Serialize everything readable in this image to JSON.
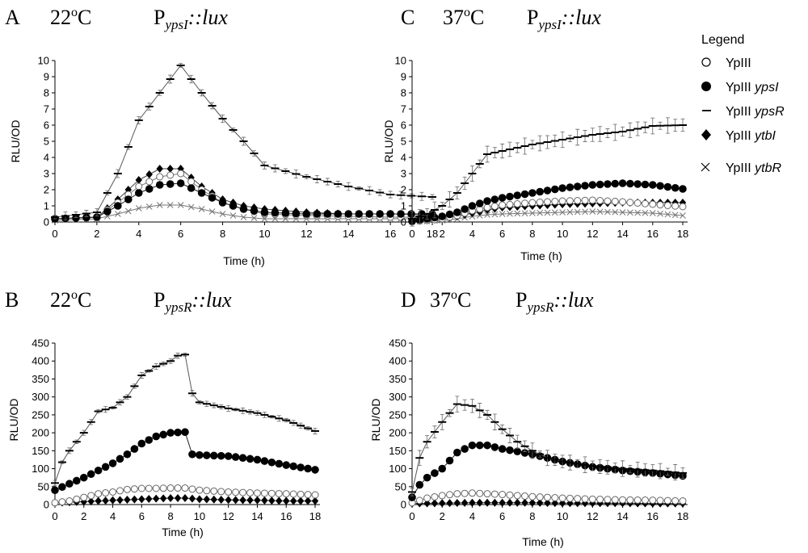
{
  "legend": {
    "title": "Legend",
    "entries": [
      {
        "marker": "open-circle",
        "strain": "YpIII",
        "gene": ""
      },
      {
        "marker": "filled-circle",
        "strain": "YpIII",
        "gene": "ypsI"
      },
      {
        "marker": "dash",
        "strain": "YpIII",
        "gene": "ypsR"
      },
      {
        "marker": "filled-diamond",
        "strain": "YpIII",
        "gene": "ytbI"
      },
      {
        "marker": "x-cross",
        "strain": "YpIII",
        "gene": "ytbR"
      }
    ]
  },
  "chart_data": [
    {
      "type": "line",
      "panel": "A",
      "title_temp": "22",
      "title_sup": "o",
      "title_unit": "C",
      "title_P": "P",
      "title_sub": "ypsI",
      "title_rest": "::lux",
      "xlabel": "Time (h)",
      "ylabel": "RLU/OD",
      "xlim": [
        0,
        18
      ],
      "ylim": [
        0,
        10
      ],
      "xticks": [
        0,
        2,
        4,
        6,
        8,
        10,
        12,
        14,
        16,
        18
      ],
      "yticks": [
        0,
        1,
        2,
        3,
        4,
        5,
        6,
        7,
        8,
        9,
        10
      ],
      "keypoints": {
        "ypsR": [
          [
            0,
            0.3
          ],
          [
            2,
            0.6
          ],
          [
            3,
            3
          ],
          [
            4,
            6.3
          ],
          [
            5,
            8
          ],
          [
            6,
            9.7
          ],
          [
            7,
            8
          ],
          [
            8,
            6.4
          ],
          [
            9,
            5
          ],
          [
            10,
            3.5
          ],
          [
            12,
            2.8
          ],
          [
            14,
            2.2
          ],
          [
            16,
            1.7
          ],
          [
            18,
            1.55
          ]
        ],
        "ytbI": [
          [
            0,
            0.2
          ],
          [
            2,
            0.3
          ],
          [
            3,
            1.4
          ],
          [
            4,
            2.6
          ],
          [
            5,
            3.3
          ],
          [
            6,
            3.3
          ],
          [
            7,
            2.2
          ],
          [
            8,
            1.4
          ],
          [
            9,
            1
          ],
          [
            10,
            0.8
          ],
          [
            12,
            0.6
          ],
          [
            14,
            0.5
          ],
          [
            16,
            0.5
          ],
          [
            18,
            0.45
          ]
        ],
        "WT": [
          [
            0,
            0.2
          ],
          [
            2,
            0.3
          ],
          [
            3,
            1.2
          ],
          [
            4,
            2.2
          ],
          [
            5,
            2.8
          ],
          [
            6,
            3
          ],
          [
            7,
            2
          ],
          [
            8,
            1.2
          ],
          [
            9,
            0.8
          ],
          [
            10,
            0.5
          ],
          [
            12,
            0.4
          ],
          [
            14,
            0.35
          ],
          [
            16,
            0.3
          ],
          [
            18,
            0.3
          ]
        ],
        "ypsI": [
          [
            0,
            0.2
          ],
          [
            2,
            0.3
          ],
          [
            3,
            1
          ],
          [
            4,
            1.8
          ],
          [
            5,
            2.3
          ],
          [
            6,
            2.4
          ],
          [
            7,
            1.8
          ],
          [
            8,
            1.2
          ],
          [
            9,
            0.8
          ],
          [
            10,
            0.6
          ],
          [
            12,
            0.5
          ],
          [
            14,
            0.5
          ],
          [
            16,
            0.5
          ],
          [
            18,
            0.5
          ]
        ],
        "ytbR": [
          [
            0,
            0.1
          ],
          [
            2,
            0.2
          ],
          [
            3,
            0.5
          ],
          [
            4,
            0.85
          ],
          [
            5,
            1.05
          ],
          [
            6,
            1.05
          ],
          [
            7,
            0.8
          ],
          [
            8,
            0.5
          ],
          [
            9,
            0.3
          ],
          [
            10,
            0.2
          ],
          [
            12,
            0.2
          ],
          [
            14,
            0.2
          ],
          [
            16,
            0.2
          ],
          [
            18,
            0.2
          ]
        ]
      },
      "errbars": {
        "ypsR": 0.25,
        "WT": 0.15
      }
    },
    {
      "type": "line",
      "panel": "C",
      "title_temp": "37",
      "title_sup": "o",
      "title_unit": "C",
      "title_P": "P",
      "title_sub": "ypsI",
      "title_rest": "::lux",
      "xlabel": "Time (h)",
      "ylabel": "RLU/OD",
      "xlim": [
        0,
        18
      ],
      "ylim": [
        0,
        10
      ],
      "xticks": [
        0,
        2,
        4,
        6,
        8,
        10,
        12,
        14,
        16,
        18
      ],
      "yticks": [
        0,
        1,
        2,
        3,
        4,
        5,
        6,
        7,
        8,
        9,
        10
      ],
      "keypoints": {
        "ypsR": [
          [
            0,
            0.2
          ],
          [
            1,
            0.5
          ],
          [
            2,
            1
          ],
          [
            3,
            1.8
          ],
          [
            4,
            3
          ],
          [
            5,
            4.2
          ],
          [
            6,
            4.4
          ],
          [
            8,
            4.8
          ],
          [
            10,
            5.1
          ],
          [
            12,
            5.4
          ],
          [
            14,
            5.6
          ],
          [
            16,
            5.95
          ],
          [
            18,
            6
          ]
        ],
        "ypsI": [
          [
            0,
            0.05
          ],
          [
            1,
            0.2
          ],
          [
            2,
            0.35
          ],
          [
            3,
            0.6
          ],
          [
            4,
            1
          ],
          [
            5,
            1.3
          ],
          [
            6,
            1.5
          ],
          [
            8,
            1.8
          ],
          [
            10,
            2.1
          ],
          [
            12,
            2.3
          ],
          [
            14,
            2.4
          ],
          [
            16,
            2.3
          ],
          [
            18,
            2.05
          ]
        ],
        "WT": [
          [
            0,
            0.05
          ],
          [
            1,
            0.1
          ],
          [
            2,
            0.2
          ],
          [
            3,
            0.4
          ],
          [
            4,
            0.7
          ],
          [
            5,
            0.9
          ],
          [
            6,
            1.05
          ],
          [
            8,
            1.2
          ],
          [
            10,
            1.3
          ],
          [
            12,
            1.35
          ],
          [
            14,
            1.25
          ],
          [
            16,
            1.1
          ],
          [
            18,
            0.95
          ]
        ],
        "ytbI": [
          [
            0,
            0.05
          ],
          [
            1,
            0.1
          ],
          [
            2,
            0.2
          ],
          [
            3,
            0.35
          ],
          [
            4,
            0.55
          ],
          [
            5,
            0.75
          ],
          [
            6,
            0.9
          ],
          [
            8,
            1
          ],
          [
            10,
            1.1
          ],
          [
            12,
            1.15
          ],
          [
            14,
            1.2
          ],
          [
            16,
            1.2
          ],
          [
            18,
            1.2
          ]
        ],
        "ytbR": [
          [
            0,
            0.02
          ],
          [
            1,
            0.05
          ],
          [
            2,
            0.1
          ],
          [
            3,
            0.2
          ],
          [
            4,
            0.35
          ],
          [
            5,
            0.45
          ],
          [
            6,
            0.5
          ],
          [
            8,
            0.55
          ],
          [
            10,
            0.6
          ],
          [
            12,
            0.65
          ],
          [
            14,
            0.6
          ],
          [
            16,
            0.55
          ],
          [
            18,
            0.4
          ]
        ]
      },
      "errbars": {
        "ypsR": 0.5,
        "WT": 0.15
      }
    },
    {
      "type": "line",
      "panel": "B",
      "title_temp": "22",
      "title_sup": "o",
      "title_unit": "C",
      "title_P": "P",
      "title_sub": "ypsR",
      "title_rest": "::lux",
      "xlabel": "Time (h)",
      "ylabel": "RLU/OD",
      "xlim": [
        0,
        18
      ],
      "ylim": [
        0,
        450
      ],
      "xticks": [
        0,
        2,
        4,
        6,
        8,
        10,
        12,
        14,
        16,
        18
      ],
      "yticks": [
        0,
        50,
        100,
        150,
        200,
        250,
        300,
        350,
        400,
        450
      ],
      "keypoints": {
        "ypsR": [
          [
            0,
            60
          ],
          [
            0.5,
            118
          ],
          [
            1,
            150
          ],
          [
            2,
            200
          ],
          [
            3,
            260
          ],
          [
            4,
            270
          ],
          [
            5,
            300
          ],
          [
            6,
            360
          ],
          [
            7,
            385
          ],
          [
            8,
            400
          ],
          [
            8.5,
            415
          ],
          [
            9,
            418
          ],
          [
            9.5,
            310
          ],
          [
            10,
            285
          ],
          [
            12,
            268
          ],
          [
            14,
            255
          ],
          [
            16,
            235
          ],
          [
            18,
            205
          ]
        ],
        "ypsI": [
          [
            0,
            40
          ],
          [
            1,
            58
          ],
          [
            2,
            75
          ],
          [
            3,
            95
          ],
          [
            4,
            115
          ],
          [
            5,
            140
          ],
          [
            6,
            170
          ],
          [
            7,
            190
          ],
          [
            8,
            200
          ],
          [
            9,
            202
          ],
          [
            9.5,
            140
          ],
          [
            10,
            138
          ],
          [
            12,
            135
          ],
          [
            14,
            125
          ],
          [
            16,
            110
          ],
          [
            18,
            97
          ]
        ],
        "WT": [
          [
            0,
            5
          ],
          [
            1,
            10
          ],
          [
            2,
            20
          ],
          [
            3,
            30
          ],
          [
            4,
            35
          ],
          [
            5,
            42
          ],
          [
            6,
            45
          ],
          [
            7,
            45
          ],
          [
            8,
            46
          ],
          [
            9,
            46
          ],
          [
            10,
            40
          ],
          [
            12,
            35
          ],
          [
            14,
            32
          ],
          [
            16,
            30
          ],
          [
            18,
            27
          ]
        ],
        "ytbI": [
          [
            0,
            5
          ],
          [
            2,
            8
          ],
          [
            4,
            12
          ],
          [
            6,
            15
          ],
          [
            8,
            18
          ],
          [
            9,
            18
          ],
          [
            10,
            15
          ],
          [
            12,
            13
          ],
          [
            14,
            12
          ],
          [
            16,
            10
          ],
          [
            18,
            10
          ]
        ]
      },
      "errbars": {
        "ypsR": 8,
        "WT": 5
      }
    },
    {
      "type": "line",
      "panel": "D",
      "title_temp": "37",
      "title_sup": "o",
      "title_unit": "C",
      "title_P": "P",
      "title_sub": "ypsR",
      "title_rest": "::lux",
      "xlabel": "Time (h)",
      "ylabel": "RLU/OD",
      "xlim": [
        0,
        18
      ],
      "ylim": [
        0,
        450
      ],
      "xticks": [
        0,
        2,
        4,
        6,
        8,
        10,
        12,
        14,
        16,
        18
      ],
      "yticks": [
        0,
        50,
        100,
        150,
        200,
        250,
        300,
        350,
        400,
        450
      ],
      "keypoints": {
        "ypsR": [
          [
            0,
            35
          ],
          [
            0.5,
            130
          ],
          [
            1,
            175
          ],
          [
            2,
            230
          ],
          [
            3,
            280
          ],
          [
            4,
            275
          ],
          [
            5,
            250
          ],
          [
            6,
            210
          ],
          [
            7,
            175
          ],
          [
            8,
            150
          ],
          [
            9,
            130
          ],
          [
            10,
            120
          ],
          [
            12,
            108
          ],
          [
            14,
            100
          ],
          [
            16,
            95
          ],
          [
            18,
            88
          ]
        ],
        "ypsI": [
          [
            0,
            20
          ],
          [
            0.5,
            55
          ],
          [
            1,
            75
          ],
          [
            2,
            100
          ],
          [
            3,
            145
          ],
          [
            4,
            165
          ],
          [
            5,
            165
          ],
          [
            6,
            155
          ],
          [
            7,
            148
          ],
          [
            8,
            140
          ],
          [
            10,
            120
          ],
          [
            12,
            105
          ],
          [
            14,
            95
          ],
          [
            16,
            88
          ],
          [
            18,
            80
          ]
        ],
        "WT": [
          [
            0,
            5
          ],
          [
            1,
            18
          ],
          [
            2,
            25
          ],
          [
            3,
            30
          ],
          [
            4,
            32
          ],
          [
            5,
            30
          ],
          [
            6,
            28
          ],
          [
            8,
            22
          ],
          [
            10,
            18
          ],
          [
            12,
            15
          ],
          [
            14,
            13
          ],
          [
            16,
            12
          ],
          [
            18,
            10
          ]
        ],
        "ytbI": [
          [
            0,
            3
          ],
          [
            2,
            4
          ],
          [
            4,
            5
          ],
          [
            6,
            5
          ],
          [
            8,
            5
          ],
          [
            10,
            4
          ],
          [
            12,
            4
          ],
          [
            14,
            4
          ],
          [
            16,
            3
          ],
          [
            18,
            3
          ]
        ]
      },
      "errbars": {
        "ypsR": 22,
        "WT": 5
      }
    }
  ]
}
